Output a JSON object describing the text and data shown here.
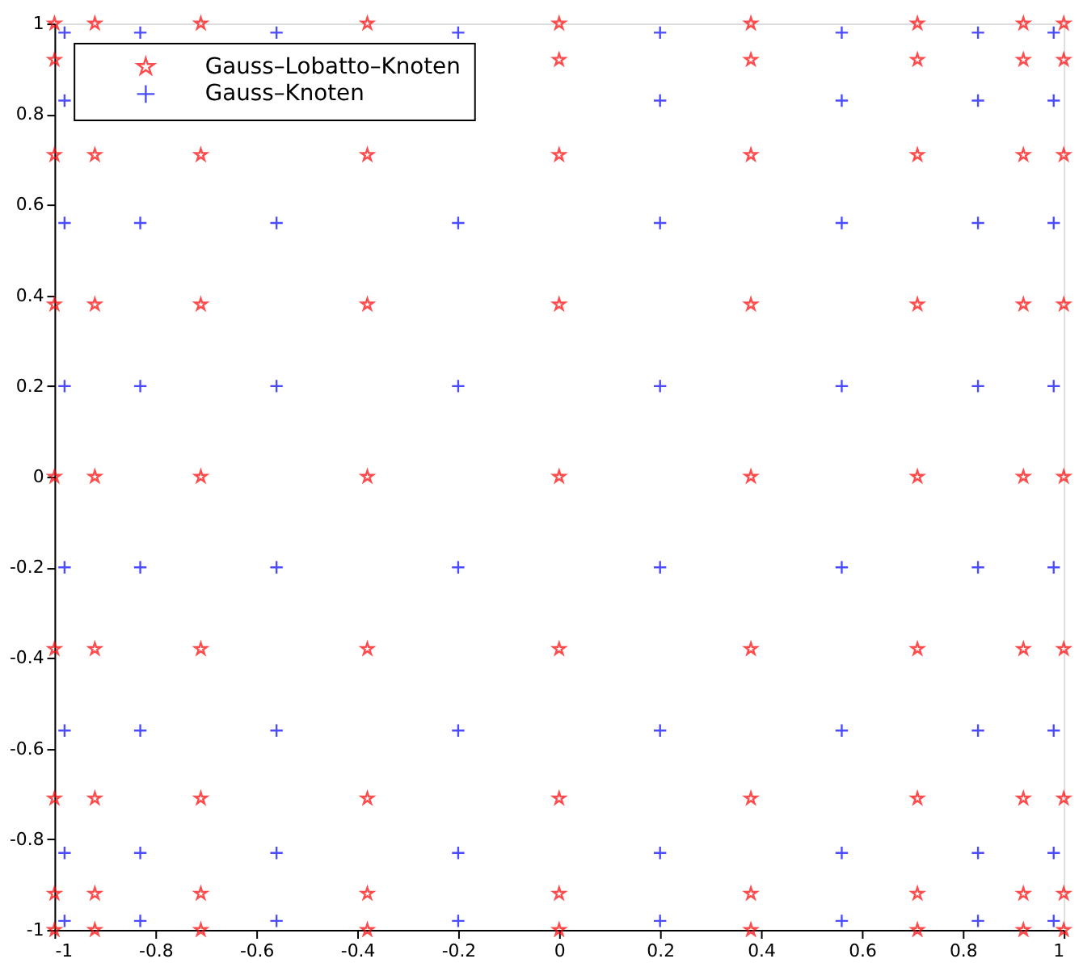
{
  "chart_data": {
    "type": "scatter",
    "xlim": [
      -1,
      1
    ],
    "ylim": [
      -1,
      1
    ],
    "xticks": [
      -1,
      -0.8,
      -0.6,
      -0.4,
      -0.2,
      0,
      0.2,
      0.4,
      0.6,
      0.8,
      1
    ],
    "yticks": [
      -1,
      -0.8,
      -0.6,
      -0.4,
      -0.2,
      0,
      0.2,
      0.4,
      0.6,
      0.8,
      1
    ],
    "grid": false,
    "legend": "top left",
    "series": [
      {
        "name": "Gauss–Lobatto–Knoten",
        "color": "#ff0000",
        "marker": "star",
        "x": [
          -1,
          -1,
          -1,
          -1,
          -1,
          -1,
          -1,
          -1,
          -1,
          -0.92,
          -0.92,
          -0.92,
          -0.92,
          -0.92,
          -0.92,
          -0.92,
          -0.92,
          -0.71,
          -0.71,
          -0.71,
          -0.71,
          -0.71,
          -0.71,
          -0.71,
          -0.71,
          -0.38,
          -0.38,
          -0.38,
          -0.38,
          -0.38,
          -0.38,
          -0.38,
          -0.38,
          0,
          0,
          0,
          0,
          0,
          0,
          0,
          0,
          0,
          0.38,
          0.38,
          0.38,
          0.38,
          0.38,
          0.38,
          0.38,
          0.38,
          0.38,
          0.71,
          0.71,
          0.71,
          0.71,
          0.71,
          0.71,
          0.71,
          0.71,
          0.71,
          0.92,
          0.92,
          0.92,
          0.92,
          0.92,
          0.92,
          0.92,
          0.92,
          0.92,
          1,
          1,
          1,
          1,
          1,
          1,
          1,
          1,
          1
        ],
        "values": [
          -1,
          -0.92,
          -0.71,
          -0.38,
          0,
          0.38,
          0.71,
          0.92,
          1,
          -1,
          -0.92,
          -0.71,
          -0.38,
          0,
          0.38,
          0.71,
          1,
          -1,
          -0.92,
          -0.71,
          -0.38,
          0,
          0.38,
          0.71,
          1,
          -1,
          -0.92,
          -0.71,
          -0.38,
          0,
          0.38,
          0.71,
          1,
          -1,
          -0.92,
          -0.71,
          -0.38,
          0,
          0.38,
          0.71,
          0.92,
          1,
          -1,
          -0.92,
          -0.71,
          -0.38,
          0,
          0.38,
          0.71,
          0.92,
          1,
          -1,
          -0.92,
          -0.71,
          -0.38,
          0,
          0.38,
          0.71,
          0.92,
          1,
          -1,
          -0.92,
          -0.71,
          -0.38,
          0,
          0.38,
          0.71,
          0.92,
          1,
          -1,
          -0.92,
          -0.71,
          -0.38,
          0,
          0.38,
          0.71,
          0.92,
          1
        ]
      },
      {
        "name": "Gauss–Knoten",
        "color": "#0000ff",
        "marker": "cross",
        "x": [
          -0.98,
          -0.98,
          -0.98,
          -0.98,
          -0.98,
          -0.98,
          -0.98,
          -0.98,
          -0.83,
          -0.83,
          -0.83,
          -0.83,
          -0.83,
          -0.83,
          -0.83,
          -0.56,
          -0.56,
          -0.56,
          -0.56,
          -0.56,
          -0.56,
          -0.56,
          -0.2,
          -0.2,
          -0.2,
          -0.2,
          -0.2,
          -0.2,
          -0.2,
          0.2,
          0.2,
          0.2,
          0.2,
          0.2,
          0.2,
          0.2,
          0.2,
          0.56,
          0.56,
          0.56,
          0.56,
          0.56,
          0.56,
          0.56,
          0.56,
          0.83,
          0.83,
          0.83,
          0.83,
          0.83,
          0.83,
          0.83,
          0.83,
          0.98,
          0.98,
          0.98,
          0.98,
          0.98,
          0.98,
          0.98,
          0.98
        ],
        "values": [
          -0.98,
          -0.83,
          -0.56,
          -0.2,
          0.2,
          0.56,
          0.83,
          0.98,
          -0.98,
          -0.83,
          -0.56,
          -0.2,
          0.2,
          0.56,
          0.98,
          -0.98,
          -0.83,
          -0.56,
          -0.2,
          0.2,
          0.56,
          0.98,
          -0.98,
          -0.83,
          -0.56,
          -0.2,
          0.2,
          0.56,
          0.98,
          -0.98,
          -0.83,
          -0.56,
          -0.2,
          0.2,
          0.56,
          0.83,
          0.98,
          -0.98,
          -0.83,
          -0.56,
          -0.2,
          0.2,
          0.56,
          0.83,
          0.98,
          -0.98,
          -0.83,
          -0.56,
          -0.2,
          0.2,
          0.56,
          0.83,
          0.98,
          -0.98,
          -0.83,
          -0.56,
          -0.2,
          0.2,
          0.56,
          0.83,
          0.98
        ]
      }
    ]
  }
}
